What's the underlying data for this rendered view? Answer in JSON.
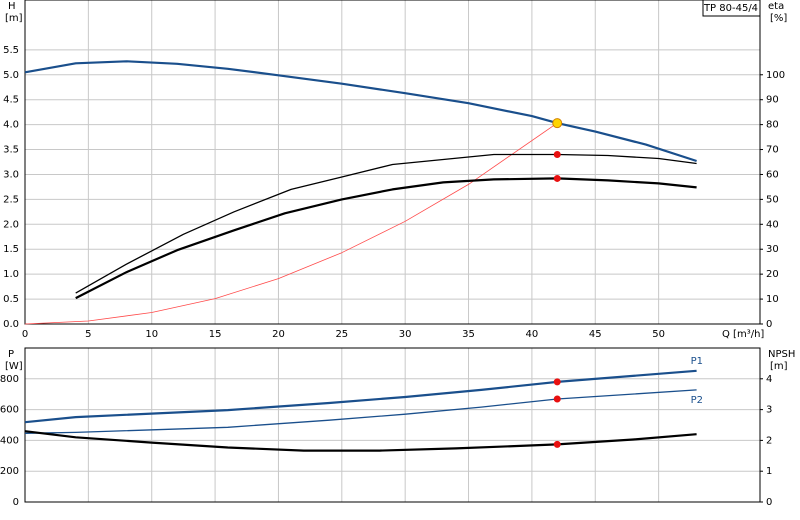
{
  "chart_data": [
    {
      "type": "line",
      "title": "TP 80-45/4",
      "ylabel": "H",
      "yunit": "[m]",
      "y2label": "eta",
      "y2unit": "[%]",
      "xlabel": "Q [m³/h]",
      "xlim": [
        0,
        58
      ],
      "xticks": [
        0,
        5,
        10,
        15,
        20,
        25,
        30,
        35,
        40,
        45,
        50
      ],
      "ylim": [
        0,
        6.5
      ],
      "yticks": [
        {
          "value": 0,
          "label": "0.0"
        },
        0.5,
        {
          "value": 1,
          "label": "1.0"
        },
        1.5,
        {
          "value": 2,
          "label": "2.0"
        },
        2.5,
        {
          "value": 3,
          "label": "3.0"
        },
        3.5,
        {
          "value": 4,
          "label": "4.0"
        },
        4.5,
        {
          "value": 5,
          "label": "5.0"
        },
        5.5
      ],
      "y2lim": [
        0,
        130
      ],
      "y2ticks": [
        0,
        10,
        20,
        30,
        40,
        50,
        60,
        70,
        80,
        90,
        100
      ],
      "grid": true,
      "series": [
        {
          "color": "#ff4a4a",
          "style": "thin",
          "x": [
            0,
            5,
            10,
            15,
            20,
            25,
            30,
            35,
            42
          ],
          "values": [
            0,
            0.06,
            0.23,
            0.51,
            0.91,
            1.43,
            2.06,
            2.8,
            4.03
          ]
        },
        {
          "color": "#000000",
          "style": "medium",
          "axis": "y2",
          "x": [
            4,
            8,
            12.5,
            16.5,
            21,
            25,
            29,
            33,
            37,
            42,
            46,
            50,
            53
          ],
          "values": [
            12.4,
            24,
            36,
            45,
            54,
            59,
            64,
            66,
            68,
            68,
            67.6,
            66.4,
            64.4
          ]
        },
        {
          "color": "#000000",
          "style": "thick",
          "axis": "y2",
          "x": [
            4,
            8,
            12,
            16.5,
            20.5,
            25,
            29,
            33,
            37,
            42,
            46,
            50,
            53
          ],
          "values": [
            10.4,
            20.8,
            29.6,
            37.6,
            44.4,
            50,
            54,
            56.8,
            58,
            58.4,
            57.6,
            56.4,
            54.8
          ]
        },
        {
          "color": "#1a4f8c",
          "style": "thick",
          "x": [
            0,
            4,
            8,
            12,
            16,
            20,
            25,
            30,
            35,
            40,
            42,
            45,
            49,
            53
          ],
          "values": [
            5.05,
            5.23,
            5.27,
            5.22,
            5.12,
            4.99,
            4.82,
            4.63,
            4.43,
            4.17,
            4.03,
            3.86,
            3.6,
            3.27
          ]
        },
        {
          "marker": true,
          "color": "#e81010",
          "axis": "y2",
          "x": [
            42,
            42
          ],
          "values": [
            68,
            58.4
          ]
        },
        {
          "marker": true,
          "color": "#ffd400",
          "x": [
            42
          ],
          "values": [
            4.03
          ]
        }
      ]
    },
    {
      "type": "line",
      "ylabel": "P",
      "yunit": "[W]",
      "y2label": "NPSH",
      "y2unit": "[m]",
      "xlim": [
        0,
        58
      ],
      "ylim": [
        0,
        1000
      ],
      "yticks": [
        0,
        200,
        400,
        600,
        800
      ],
      "y2lim": [
        0,
        5
      ],
      "y2ticks": [
        0,
        1,
        2,
        3,
        4
      ],
      "grid": true,
      "series": [
        {
          "name": "P1",
          "color": "#1a4f8c",
          "style": "thick",
          "x": [
            0,
            4,
            16,
            24,
            30,
            36,
            42,
            53
          ],
          "values": [
            518,
            551,
            597,
            643,
            682,
            728,
            780,
            852
          ]
        },
        {
          "name": "P2",
          "color": "#1a4f8c",
          "style": "medium",
          "x": [
            0,
            4,
            16,
            24,
            30,
            36,
            42,
            53
          ],
          "values": [
            446,
            452,
            485,
            531,
            570,
            616,
            669,
            728
          ]
        },
        {
          "color": "#000000",
          "style": "thick",
          "axis": "y2",
          "x": [
            0,
            4,
            10,
            16,
            22,
            28,
            34,
            42,
            48,
            53
          ],
          "values": [
            2.3,
            2.1,
            1.93,
            1.77,
            1.67,
            1.67,
            1.74,
            1.87,
            2.03,
            2.2
          ]
        },
        {
          "marker": true,
          "color": "#e81010",
          "x": [
            42,
            42
          ],
          "values": [
            780,
            669
          ]
        },
        {
          "marker": true,
          "color": "#e81010",
          "axis": "y2",
          "x": [
            42
          ],
          "values": [
            1.87
          ]
        }
      ]
    }
  ]
}
